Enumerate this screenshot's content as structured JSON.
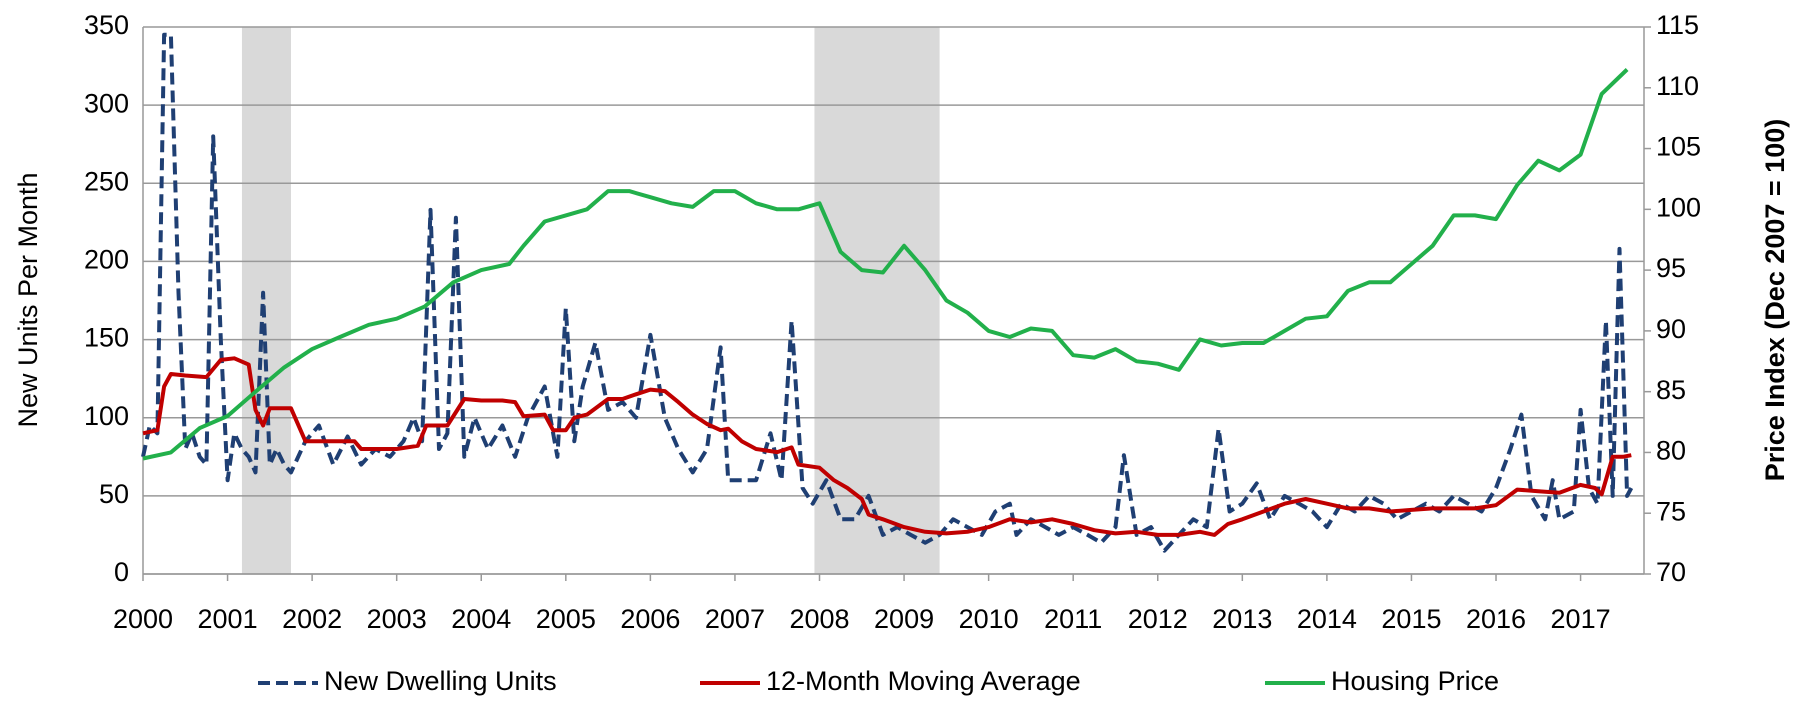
{
  "chart_data": {
    "type": "line",
    "ylabel": "New Units Per Month",
    "y2label": "Price Index (Dec 2007 = 100)",
    "xlim": [
      2000,
      2017.75
    ],
    "xticks": [
      2000,
      2001,
      2002,
      2003,
      2004,
      2005,
      2006,
      2007,
      2008,
      2009,
      2010,
      2011,
      2012,
      2013,
      2014,
      2015,
      2016,
      2017
    ],
    "ylim": [
      0,
      350
    ],
    "yticks": [
      0,
      50,
      100,
      150,
      200,
      250,
      300,
      350
    ],
    "y2lim": [
      70,
      115
    ],
    "y2ticks": [
      70,
      75,
      80,
      85,
      90,
      95,
      100,
      105,
      110,
      115
    ],
    "grid": true,
    "legend": "bottom",
    "shaded_regions": [
      [
        2001.17,
        2001.75
      ],
      [
        2007.94,
        2009.42
      ]
    ],
    "series": [
      {
        "name": "New Dwelling Units",
        "color": "#1f3f73",
        "dash": true,
        "x": [
          2000.0,
          2000.08,
          2000.17,
          2000.25,
          2000.33,
          2000.42,
          2000.5,
          2000.58,
          2000.67,
          2000.75,
          2000.83,
          2000.92,
          2001.0,
          2001.08,
          2001.17,
          2001.25,
          2001.33,
          2001.42,
          2001.5,
          2001.58,
          2001.67,
          2001.75,
          2001.92,
          2002.08,
          2002.25,
          2002.42,
          2002.58,
          2002.75,
          2002.92,
          2003.08,
          2003.2,
          2003.3,
          2003.4,
          2003.5,
          2003.6,
          2003.7,
          2003.8,
          2003.92,
          2004.08,
          2004.25,
          2004.4,
          2004.55,
          2004.75,
          2004.9,
          2005.0,
          2005.1,
          2005.2,
          2005.35,
          2005.5,
          2005.67,
          2005.83,
          2006.0,
          2006.17,
          2006.33,
          2006.5,
          2006.67,
          2006.83,
          2006.92,
          2007.08,
          2007.25,
          2007.42,
          2007.55,
          2007.67,
          2007.8,
          2007.92,
          2008.08,
          2008.25,
          2008.42,
          2008.58,
          2008.75,
          2008.92,
          2009.08,
          2009.25,
          2009.42,
          2009.58,
          2009.75,
          2009.92,
          2010.08,
          2010.25,
          2010.33,
          2010.5,
          2010.67,
          2010.83,
          2011.0,
          2011.17,
          2011.33,
          2011.5,
          2011.6,
          2011.75,
          2011.92,
          2012.08,
          2012.25,
          2012.42,
          2012.58,
          2012.72,
          2012.85,
          2013.0,
          2013.17,
          2013.33,
          2013.5,
          2013.67,
          2013.83,
          2014.0,
          2014.17,
          2014.33,
          2014.5,
          2014.67,
          2014.83,
          2015.0,
          2015.17,
          2015.33,
          2015.5,
          2015.67,
          2015.83,
          2016.0,
          2016.17,
          2016.3,
          2016.42,
          2016.58,
          2016.67,
          2016.75,
          2016.92,
          2017.0,
          2017.1,
          2017.2,
          2017.3,
          2017.38,
          2017.46,
          2017.55,
          2017.6
        ],
        "values": [
          75,
          95,
          90,
          345,
          345,
          180,
          80,
          90,
          75,
          70,
          280,
          150,
          60,
          90,
          80,
          75,
          65,
          180,
          70,
          80,
          70,
          65,
          85,
          95,
          70,
          88,
          70,
          80,
          75,
          85,
          100,
          85,
          233,
          80,
          90,
          228,
          75,
          100,
          80,
          95,
          75,
          100,
          120,
          75,
          170,
          85,
          120,
          148,
          105,
          110,
          100,
          153,
          100,
          80,
          65,
          80,
          145,
          60,
          60,
          60,
          90,
          60,
          162,
          55,
          45,
          60,
          35,
          35,
          50,
          25,
          30,
          25,
          20,
          25,
          35,
          30,
          25,
          40,
          45,
          25,
          35,
          30,
          25,
          30,
          25,
          20,
          30,
          76,
          25,
          30,
          15,
          25,
          35,
          30,
          93,
          40,
          45,
          58,
          35,
          50,
          45,
          40,
          30,
          45,
          40,
          50,
          45,
          35,
          40,
          45,
          40,
          50,
          45,
          40,
          55,
          80,
          102,
          50,
          35,
          60,
          35,
          40,
          105,
          55,
          45,
          162,
          50,
          208,
          50,
          55
        ]
      },
      {
        "name": "12-Month Moving Average",
        "color": "#c00000",
        "x": [
          2000.0,
          2000.17,
          2000.25,
          2000.33,
          2000.5,
          2000.75,
          2000.92,
          2001.08,
          2001.25,
          2001.33,
          2001.42,
          2001.5,
          2001.75,
          2001.92,
          2002.08,
          2002.5,
          2002.58,
          2002.75,
          2003.0,
          2003.25,
          2003.35,
          2003.6,
          2003.8,
          2004.0,
          2004.25,
          2004.4,
          2004.5,
          2004.75,
          2004.85,
          2005.0,
          2005.1,
          2005.25,
          2005.5,
          2005.67,
          2005.83,
          2006.0,
          2006.17,
          2006.33,
          2006.5,
          2006.67,
          2006.83,
          2006.92,
          2007.08,
          2007.25,
          2007.5,
          2007.67,
          2007.75,
          2008.0,
          2008.17,
          2008.33,
          2008.5,
          2008.58,
          2008.75,
          2009.0,
          2009.25,
          2009.5,
          2009.75,
          2010.0,
          2010.25,
          2010.5,
          2010.75,
          2011.0,
          2011.25,
          2011.5,
          2011.75,
          2012.0,
          2012.25,
          2012.5,
          2012.67,
          2012.83,
          2013.0,
          2013.25,
          2013.5,
          2013.75,
          2014.0,
          2014.25,
          2014.5,
          2014.75,
          2015.0,
          2015.25,
          2015.5,
          2015.75,
          2016.0,
          2016.25,
          2016.5,
          2016.75,
          2017.0,
          2017.17,
          2017.25,
          2017.38,
          2017.5,
          2017.6
        ],
        "values": [
          90,
          92,
          120,
          128,
          127,
          126,
          137,
          138,
          134,
          105,
          95,
          106,
          106,
          85,
          85,
          85,
          80,
          80,
          80,
          82,
          95,
          95,
          112,
          111,
          111,
          110,
          101,
          102,
          92,
          92,
          100,
          102,
          112,
          112,
          115,
          118,
          117,
          110,
          102,
          96,
          92,
          93,
          85,
          80,
          78,
          81,
          70,
          68,
          60,
          55,
          48,
          38,
          35,
          30,
          27,
          26,
          27,
          30,
          35,
          33,
          35,
          32,
          28,
          26,
          27,
          25,
          25,
          27,
          25,
          32,
          35,
          40,
          45,
          48,
          45,
          42,
          42,
          40,
          41,
          42,
          42,
          42,
          44,
          54,
          53,
          52,
          57,
          55,
          51,
          75,
          75,
          76
        ]
      },
      {
        "name": "Housing Price",
        "color": "#22b04b",
        "axis": "y2",
        "x": [
          2000.0,
          2000.33,
          2000.67,
          2001.0,
          2001.33,
          2001.67,
          2002.0,
          2002.33,
          2002.67,
          2003.0,
          2003.33,
          2003.67,
          2004.0,
          2004.33,
          2004.5,
          2004.75,
          2005.0,
          2005.25,
          2005.5,
          2005.75,
          2006.0,
          2006.25,
          2006.5,
          2006.75,
          2007.0,
          2007.25,
          2007.5,
          2007.75,
          2008.0,
          2008.25,
          2008.5,
          2008.75,
          2009.0,
          2009.25,
          2009.5,
          2009.75,
          2010.0,
          2010.25,
          2010.5,
          2010.75,
          2011.0,
          2011.25,
          2011.5,
          2011.75,
          2012.0,
          2012.25,
          2012.5,
          2012.75,
          2013.0,
          2013.25,
          2013.5,
          2013.75,
          2014.0,
          2014.25,
          2014.5,
          2014.75,
          2015.0,
          2015.25,
          2015.5,
          2015.75,
          2016.0,
          2016.25,
          2016.5,
          2016.75,
          2017.0,
          2017.25,
          2017.55
        ],
        "values": [
          79.5,
          80,
          82,
          83,
          85,
          87,
          88.5,
          89.5,
          90.5,
          91,
          92,
          94,
          95,
          95.5,
          97,
          99,
          99.5,
          100,
          101.5,
          101.5,
          101,
          100.5,
          100.2,
          101.5,
          101.5,
          100.5,
          100,
          100,
          100.5,
          96.5,
          95,
          94.8,
          97,
          95,
          92.5,
          91.5,
          90,
          89.5,
          90.2,
          90,
          88,
          87.8,
          88.5,
          87.5,
          87.3,
          86.8,
          89.3,
          88.8,
          89,
          89,
          90,
          91,
          91.2,
          93.3,
          94,
          94,
          95.5,
          97,
          99.5,
          99.5,
          99.2,
          102,
          104,
          103.2,
          104.5,
          109.5,
          111.5
        ]
      }
    ]
  }
}
